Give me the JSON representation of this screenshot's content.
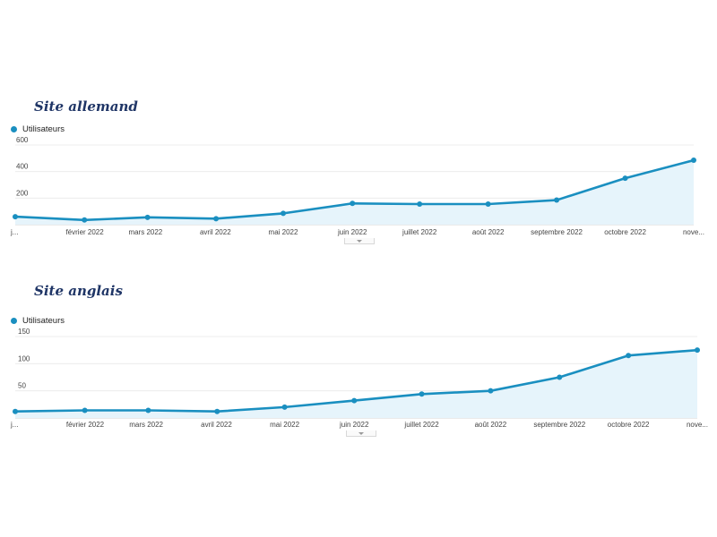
{
  "chart_data": [
    {
      "type": "area",
      "title": "Site allemand",
      "legend": "Utilisateurs",
      "series_color": "#1a8fc0",
      "fill_color": "#e6f4fb",
      "categories": [
        "j...",
        "février 2022",
        "mars 2022",
        "avril 2022",
        "mai 2022",
        "juin 2022",
        "juillet 2022",
        "août 2022",
        "septembre 2022",
        "octobre 2022",
        "nove..."
      ],
      "series": [
        {
          "name": "Utilisateurs",
          "values": [
            60,
            35,
            55,
            45,
            85,
            160,
            155,
            155,
            185,
            350,
            485
          ]
        }
      ],
      "yticks": [
        "200",
        "400",
        "600"
      ],
      "ylim": [
        0,
        600
      ],
      "grid": true,
      "legend_position": "top-left"
    },
    {
      "type": "area",
      "title": "Site anglais",
      "legend": "Utilisateurs",
      "series_color": "#1a8fc0",
      "fill_color": "#e6f4fb",
      "categories": [
        "j...",
        "février 2022",
        "mars 2022",
        "avril 2022",
        "mai 2022",
        "juin 2022",
        "juillet 2022",
        "août 2022",
        "septembre 2022",
        "octobre 2022",
        "nove..."
      ],
      "series": [
        {
          "name": "Utilisateurs",
          "values": [
            12,
            14,
            14,
            12,
            20,
            32,
            44,
            50,
            75,
            115,
            125
          ]
        }
      ],
      "yticks": [
        "50",
        "100",
        "150"
      ],
      "ylim": [
        0,
        150
      ],
      "grid": true,
      "legend_position": "top-left"
    }
  ]
}
